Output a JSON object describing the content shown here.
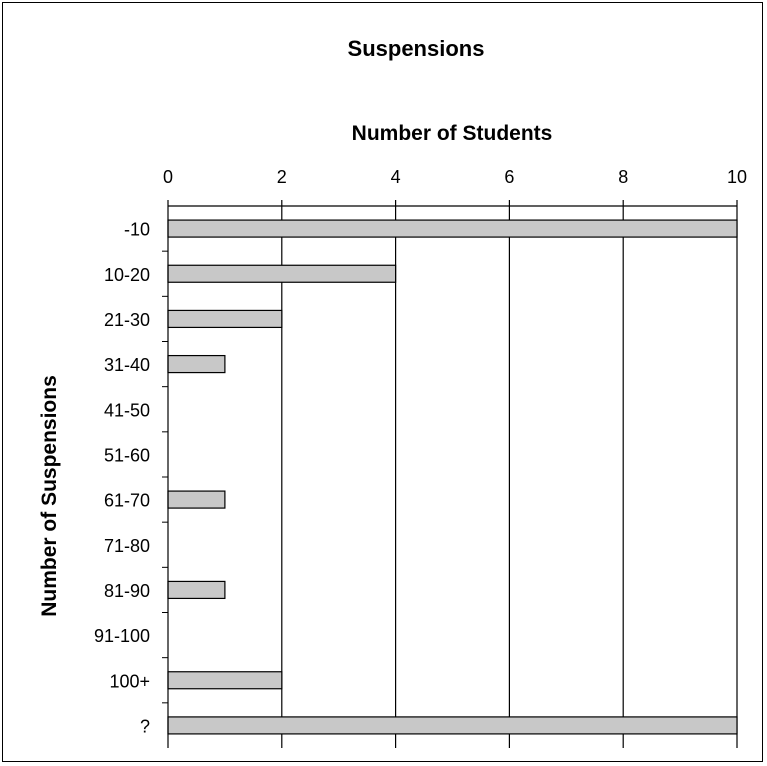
{
  "chart_data": {
    "type": "bar",
    "orientation": "horizontal",
    "title": "Suspensions",
    "xlabel": "Number of Students",
    "ylabel": "Number of Suspensions",
    "xlim": [
      0,
      10
    ],
    "x_ticks": [
      "0",
      "2",
      "4",
      "6",
      "8",
      "10"
    ],
    "categories": [
      "-10",
      "10-20",
      "21-30",
      "31-40",
      "41-50",
      "51-60",
      "61-70",
      "71-80",
      "81-90",
      "91-100",
      "100+",
      "?"
    ],
    "values": [
      10,
      4,
      2,
      1,
      0,
      0,
      1,
      0,
      1,
      0,
      2,
      10
    ],
    "grid": true,
    "x_axis_position": "top",
    "bar_color": "#c8c8c8"
  }
}
